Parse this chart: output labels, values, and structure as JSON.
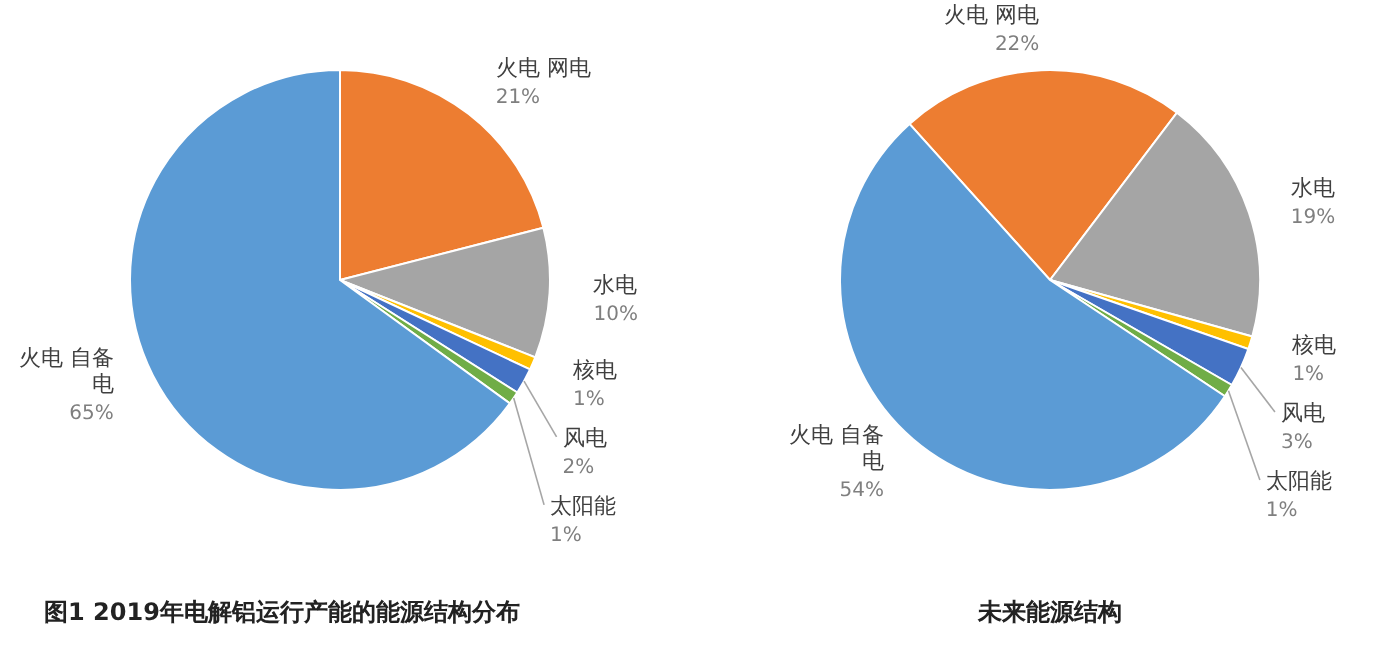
{
  "chart_data": [
    {
      "type": "pie",
      "title": "图1 2019年电解铝运行产能的能源结构分布",
      "categories": [
        "火电 网电",
        "水电",
        "核电",
        "风电",
        "太阳能",
        "火电 自备电"
      ],
      "values": [
        21,
        10,
        1,
        2,
        1,
        65
      ],
      "value_labels": [
        "21%",
        "10%",
        "1%",
        "2%",
        "1%",
        "65%"
      ],
      "colors": [
        "#ed7d31",
        "#a5a5a5",
        "#ffc000",
        "#4472c4",
        "#70ad47",
        "#5b9bd5"
      ]
    },
    {
      "type": "pie",
      "title": "未来能源结构",
      "categories": [
        "火电 网电",
        "水电",
        "核电",
        "风电",
        "太阳能",
        "火电 自备电"
      ],
      "values": [
        22,
        19,
        1,
        3,
        1,
        54
      ],
      "value_labels": [
        "22%",
        "19%",
        "1%",
        "3%",
        "1%",
        "54%"
      ],
      "colors": [
        "#ed7d31",
        "#a5a5a5",
        "#ffc000",
        "#4472c4",
        "#70ad47",
        "#5b9bd5"
      ]
    }
  ]
}
